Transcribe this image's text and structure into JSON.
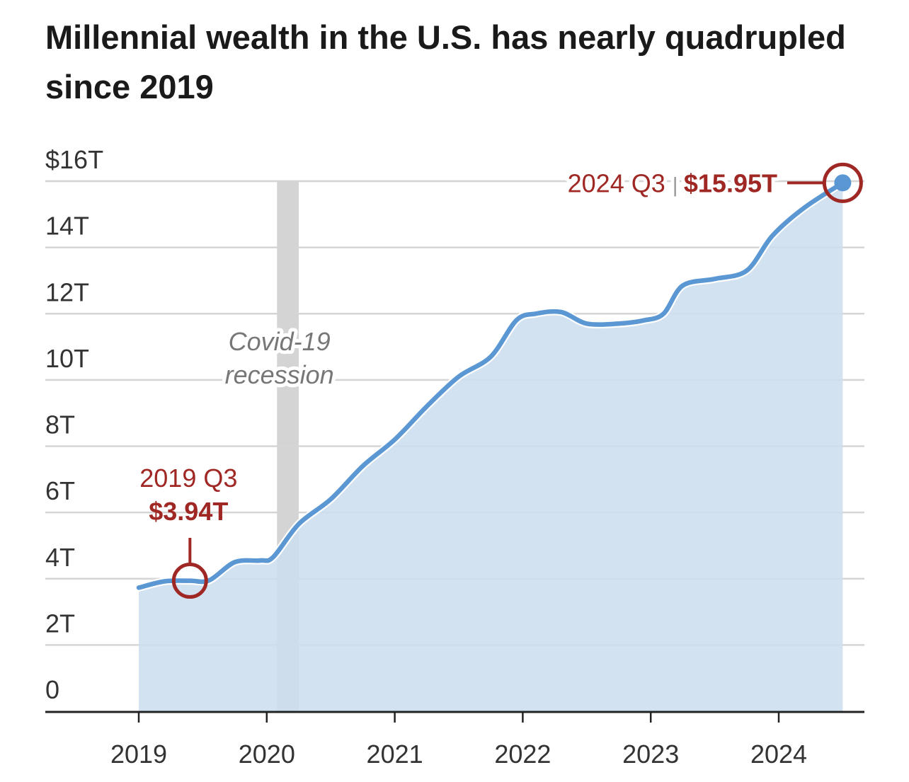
{
  "chart_data": {
    "type": "area",
    "title": "Millennial wealth in the U.S. has nearly quadrupled since 2019",
    "xlabel": "",
    "ylabel": "",
    "y_ticks": [
      "0",
      "2T",
      "4T",
      "6T",
      "8T",
      "10T",
      "12T",
      "14T",
      "$16T"
    ],
    "y_tick_values": [
      0,
      2,
      4,
      6,
      8,
      10,
      12,
      14,
      16
    ],
    "ylim": [
      0,
      16
    ],
    "x_ticks": [
      "2019",
      "2020",
      "2021",
      "2022",
      "2023",
      "2024"
    ],
    "x_tick_values": [
      2019,
      2020,
      2021,
      2022,
      2023,
      2024
    ],
    "xlim": [
      2018.3,
      2024.7
    ],
    "grid": true,
    "units": "trillion U.S. dollars",
    "series": [
      {
        "color": "#5b97d2",
        "fill": "#ccdeef",
        "x": [
          2019.0,
          2019.2,
          2019.4,
          2019.55,
          2019.75,
          2019.95,
          2020.05,
          2020.25,
          2020.5,
          2020.75,
          2021.0,
          2021.25,
          2021.5,
          2021.75,
          2021.95,
          2022.1,
          2022.3,
          2022.5,
          2022.75,
          2022.95,
          2023.1,
          2023.25,
          2023.5,
          2023.75,
          2023.95,
          2024.2,
          2024.5
        ],
        "values": [
          3.73,
          3.92,
          3.94,
          3.95,
          4.5,
          4.55,
          4.65,
          5.65,
          6.4,
          7.4,
          8.2,
          9.2,
          10.1,
          10.7,
          11.8,
          12.0,
          12.05,
          11.7,
          11.7,
          11.8,
          12.0,
          12.85,
          13.05,
          13.3,
          14.35,
          15.2,
          15.95
        ]
      }
    ],
    "shaded_regions": [
      {
        "x_start": 2020.08,
        "x_end": 2020.25,
        "label_line1": "Covid-19",
        "label_line2": "recession",
        "color": "#d4d4d4"
      }
    ],
    "annotations": [
      {
        "x": 2019.4,
        "y": 3.94,
        "period": "2019 Q3",
        "value": "$3.94T",
        "color": "#a02824"
      },
      {
        "x": 2024.5,
        "y": 15.95,
        "period": "2024 Q3",
        "separator": "|",
        "value": "$15.95T",
        "color": "#a02824"
      }
    ]
  }
}
